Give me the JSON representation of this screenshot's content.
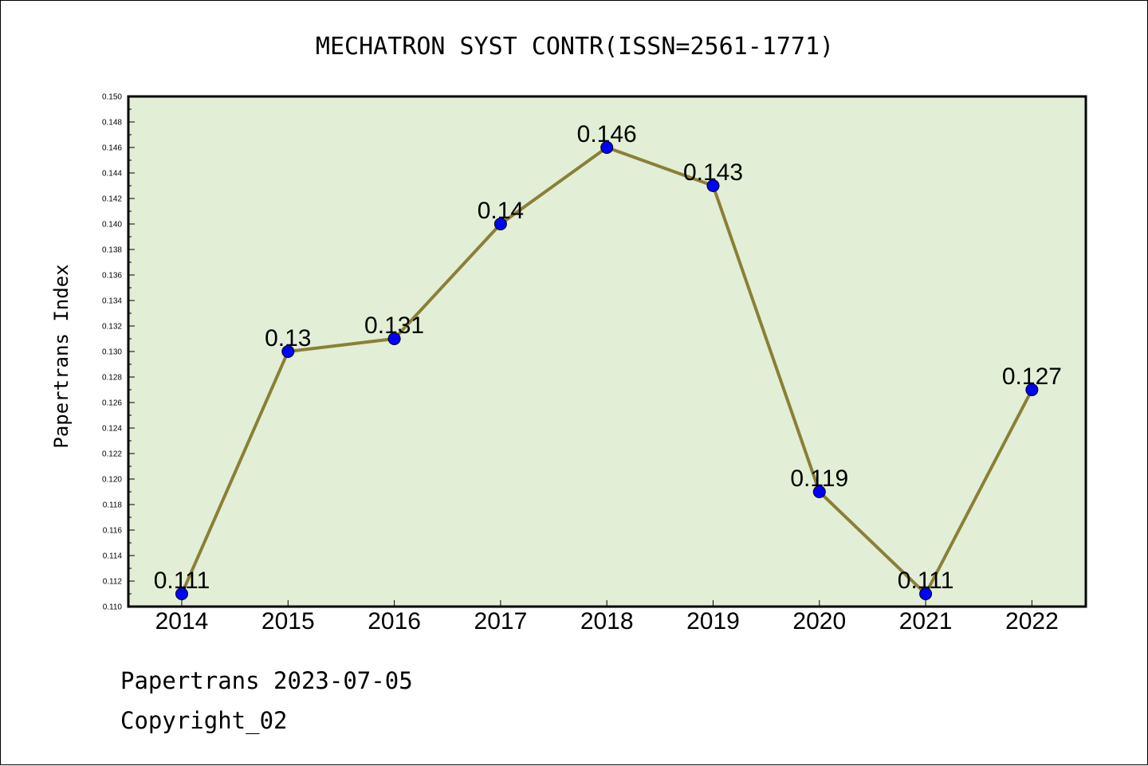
{
  "chart_data": {
    "type": "line",
    "title": "MECHATRON SYST CONTR(ISSN=2561-1771)",
    "xlabel": "",
    "ylabel": "Papertrans Index",
    "categories": [
      "2014",
      "2015",
      "2016",
      "2017",
      "2018",
      "2019",
      "2020",
      "2021",
      "2022"
    ],
    "values": [
      0.111,
      0.13,
      0.131,
      0.14,
      0.146,
      0.143,
      0.119,
      0.111,
      0.127
    ],
    "data_labels": [
      "0.111",
      "0.13",
      "0.131",
      "0.14",
      "0.146",
      "0.143",
      "0.119",
      "0.111",
      "0.127"
    ],
    "ylim": [
      0.11,
      0.15
    ],
    "yticks": [
      "0.110",
      "0.112",
      "0.114",
      "0.116",
      "0.118",
      "0.120",
      "0.122",
      "0.124",
      "0.126",
      "0.128",
      "0.130",
      "0.132",
      "0.134",
      "0.136",
      "0.138",
      "0.140",
      "0.142",
      "0.144",
      "0.146",
      "0.148",
      "0.150"
    ],
    "grid": false,
    "colors": {
      "plot_background": "#e2efd6",
      "line": "#8b7f37",
      "marker": "#0000ff"
    }
  },
  "footer": {
    "line1": "Papertrans 2023-07-05",
    "line2": "Copyright_02"
  }
}
